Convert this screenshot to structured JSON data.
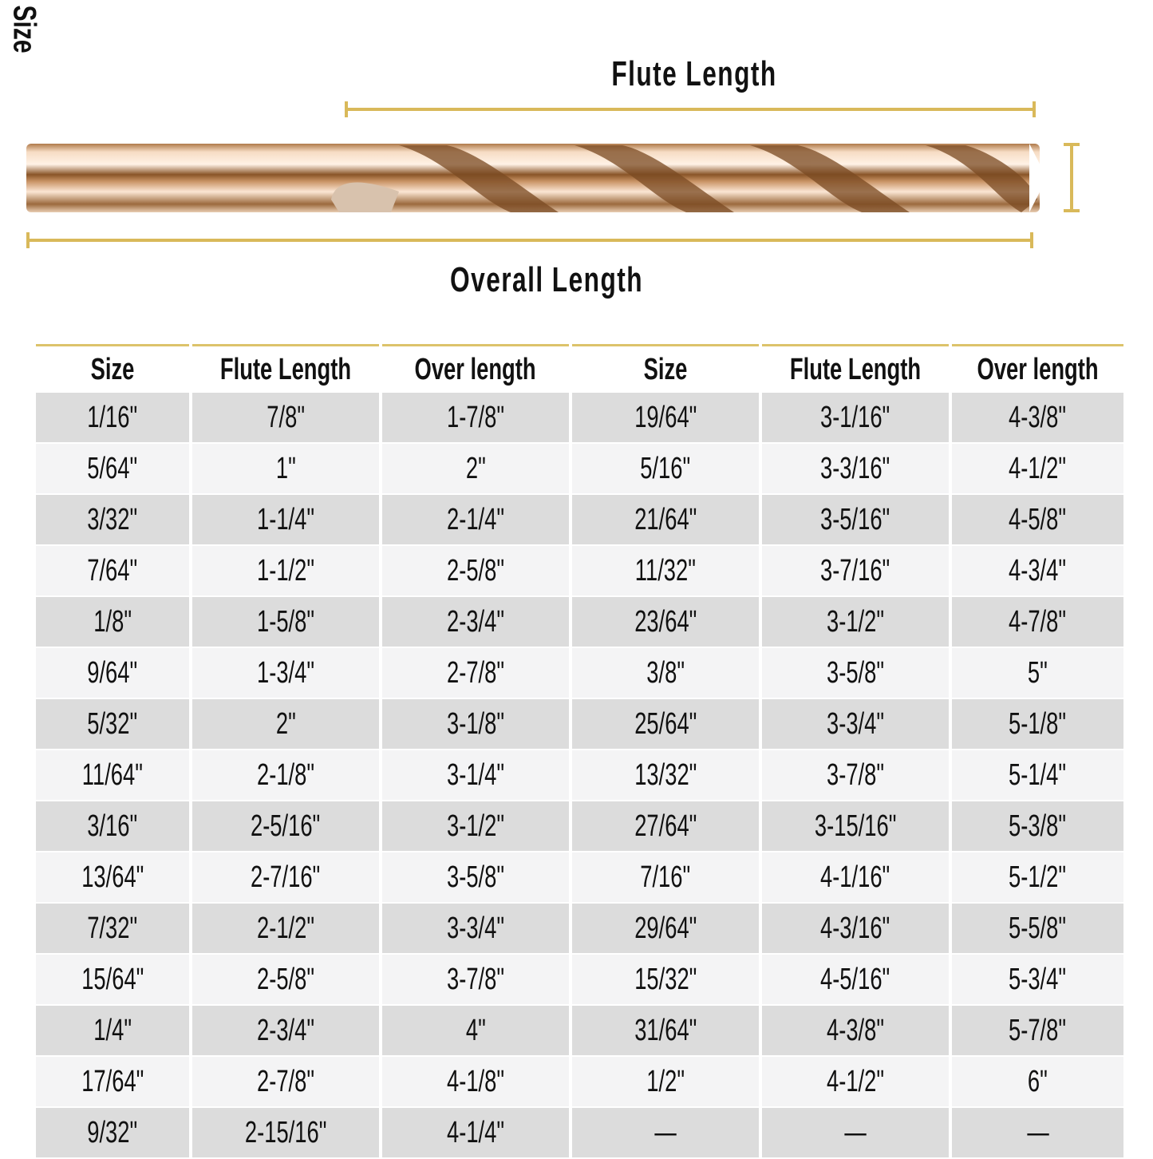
{
  "diagram": {
    "flute_length_label": "Flute Length",
    "overall_length_label": "Overall Length",
    "size_label": "Size",
    "accent_color": "#d9b95a"
  },
  "table": {
    "headers": [
      "Size",
      "Flute Length",
      "Over length",
      "Size",
      "Flute Length",
      "Over length"
    ],
    "rows": [
      [
        "1/16\"",
        "7/8\"",
        "1-7/8\"",
        "19/64\"",
        "3-1/16\"",
        "4-3/8\""
      ],
      [
        "5/64\"",
        "1\"",
        "2\"",
        "5/16\"",
        "3-3/16\"",
        "4-1/2\""
      ],
      [
        "3/32\"",
        "1-1/4\"",
        "2-1/4\"",
        "21/64\"",
        "3-5/16\"",
        "4-5/8\""
      ],
      [
        "7/64\"",
        "1-1/2\"",
        "2-5/8\"",
        "11/32\"",
        "3-7/16\"",
        "4-3/4\""
      ],
      [
        "1/8\"",
        "1-5/8\"",
        "2-3/4\"",
        "23/64\"",
        "3-1/2\"",
        "4-7/8\""
      ],
      [
        "9/64\"",
        "1-3/4\"",
        "2-7/8\"",
        "3/8\"",
        "3-5/8\"",
        "5\""
      ],
      [
        "5/32\"",
        "2\"",
        "3-1/8\"",
        "25/64\"",
        "3-3/4\"",
        "5-1/8\""
      ],
      [
        "11/64\"",
        "2-1/8\"",
        "3-1/4\"",
        "13/32\"",
        "3-7/8\"",
        "5-1/4\""
      ],
      [
        "3/16\"",
        "2-5/16\"",
        "3-1/2\"",
        "27/64\"",
        "3-15/16\"",
        "5-3/8\""
      ],
      [
        "13/64\"",
        "2-7/16\"",
        "3-5/8\"",
        "7/16\"",
        "4-1/16\"",
        "5-1/2\""
      ],
      [
        "7/32\"",
        "2-1/2\"",
        "3-3/4\"",
        "29/64\"",
        "4-3/16\"",
        "5-5/8\""
      ],
      [
        "15/64\"",
        "2-5/8\"",
        "3-7/8\"",
        "15/32\"",
        "4-5/16\"",
        "5-3/4\""
      ],
      [
        "1/4\"",
        "2-3/4\"",
        "4\"",
        "31/64\"",
        "4-3/8\"",
        "5-7/8\""
      ],
      [
        "17/64\"",
        "2-7/8\"",
        "4-1/8\"",
        "1/2\"",
        "4-1/2\"",
        "6\""
      ],
      [
        "9/32\"",
        "2-15/16\"",
        "4-1/4\"",
        "—",
        "—",
        "—"
      ]
    ]
  }
}
